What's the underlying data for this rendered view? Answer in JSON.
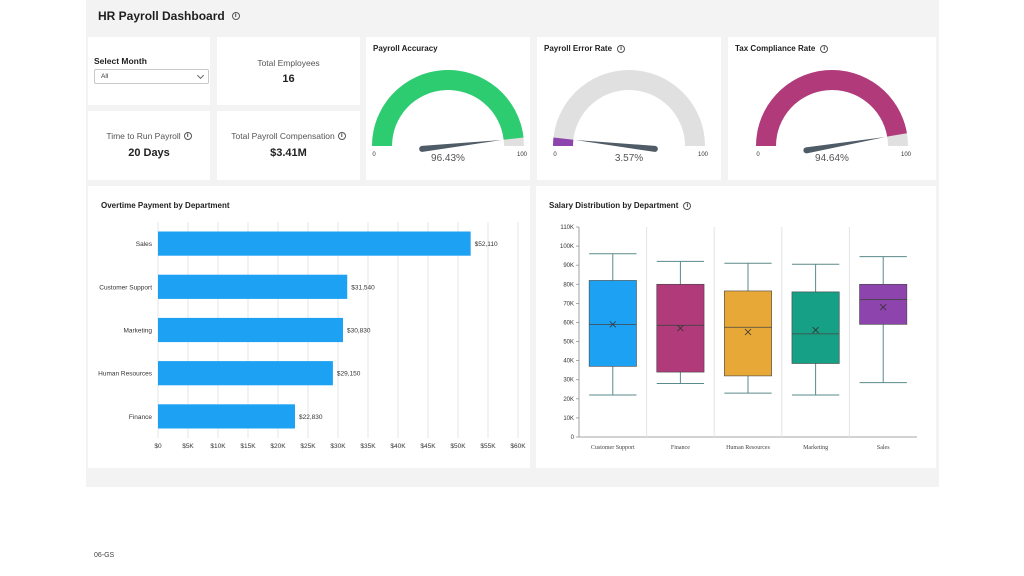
{
  "header": {
    "title": "HR Payroll Dashboard"
  },
  "filter": {
    "label": "Select Month",
    "value": "All"
  },
  "kpis": {
    "total_employees": {
      "label": "Total Employees",
      "value": "16"
    },
    "time_to_run": {
      "label": "Time to Run Payroll",
      "value": "20 Days"
    },
    "total_compensation": {
      "label": "Total Payroll Compensation",
      "value": "$3.41M"
    }
  },
  "gauges": [
    {
      "title": "Payroll Accuracy",
      "value": 96.43,
      "value_label": "96.43%",
      "min_label": "0",
      "max_label": "100",
      "color": "#2ecc71",
      "has_info": false
    },
    {
      "title": "Payroll Error Rate",
      "value": 3.57,
      "value_label": "3.57%",
      "min_label": "0",
      "max_label": "100",
      "color": "#8e44ad",
      "has_info": true
    },
    {
      "title": "Tax Compliance Rate",
      "value": 94.64,
      "value_label": "94.64%",
      "min_label": "0",
      "max_label": "100",
      "color": "#b03a7a",
      "has_info": true
    }
  ],
  "gauge_track_color": "#e0e0e0",
  "needle_color": "#4f5b66",
  "chart_data": [
    {
      "type": "bar",
      "orientation": "horizontal",
      "title": "Overtime Payment by Department",
      "categories": [
        "Sales",
        "Customer Support",
        "Marketing",
        "Human Resources",
        "Finance"
      ],
      "values": [
        52110,
        31540,
        30830,
        29150,
        22830
      ],
      "value_labels": [
        "$52,110",
        "$31,540",
        "$30,830",
        "$29,150",
        "$22,830"
      ],
      "xticks": [
        "$0",
        "$5K",
        "$10K",
        "$15K",
        "$20K",
        "$25K",
        "$30K",
        "$35K",
        "$40K",
        "$45K",
        "$50K",
        "$55K",
        "$60K"
      ],
      "xlim": [
        0,
        60000
      ],
      "grid": true,
      "color": "#1da1f2"
    },
    {
      "type": "box",
      "title": "Salary Distribution by Department",
      "categories": [
        "Customer Support",
        "Finance",
        "Human Resources",
        "Marketing",
        "Sales"
      ],
      "boxes": [
        {
          "min": 22000,
          "q1": 37000,
          "median": 59000,
          "q3": 82000,
          "max": 96000,
          "mean": 59000,
          "color": "#1da1f2"
        },
        {
          "min": 28000,
          "q1": 34000,
          "median": 58500,
          "q3": 80000,
          "max": 92000,
          "mean": 57000,
          "color": "#b03a7a"
        },
        {
          "min": 23000,
          "q1": 32000,
          "median": 57500,
          "q3": 76500,
          "max": 91000,
          "mean": 55000,
          "color": "#e8a838"
        },
        {
          "min": 22000,
          "q1": 38500,
          "median": 54000,
          "q3": 76000,
          "max": 90500,
          "mean": 56000,
          "color": "#16a085"
        },
        {
          "min": 28500,
          "q1": 59000,
          "median": 72000,
          "q3": 80000,
          "max": 94500,
          "mean": 68000,
          "color": "#8e44ad"
        }
      ],
      "yticks": [
        "0",
        "10K",
        "20K",
        "30K",
        "40K",
        "50K",
        "60K",
        "70K",
        "80K",
        "90K",
        "100K",
        "110K"
      ],
      "ylim": [
        0,
        110000
      ],
      "grid": true
    }
  ],
  "footer": {
    "code": "06-GS"
  }
}
